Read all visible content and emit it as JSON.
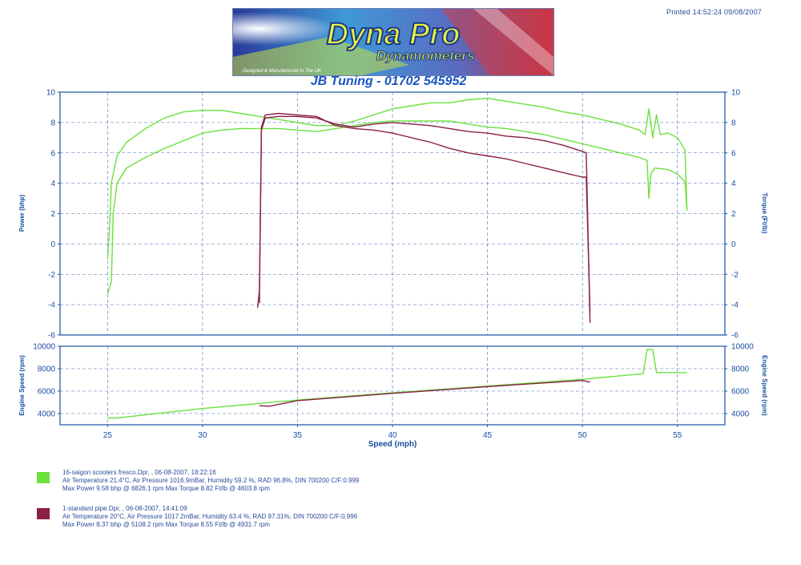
{
  "header": {
    "printed": "Printed 14:52:24  09/08/2007",
    "logo_title": "Dyna Pro",
    "logo_sub": "Dynamometers",
    "logo_tagline": "Designed & Manufactured In The UK",
    "subtitle": "JB Tuning - 01702 545952"
  },
  "colors": {
    "series_1": "#6be13c",
    "series_2": "#8a1f45",
    "axis": "#1a4fa0"
  },
  "chart_data": [
    {
      "type": "line",
      "title": "",
      "xlabel": "",
      "ylabel_left": "Power (bhp)",
      "ylabel_right": "Torque (Ft/lb)",
      "xlim": [
        22.5,
        57.5
      ],
      "ylim": [
        -6,
        10
      ],
      "y_ticks": [
        -6,
        -4,
        -2,
        0,
        2,
        4,
        6,
        8,
        10
      ],
      "grid": true,
      "series": [
        {
          "name": "Power",
          "group": 1,
          "points": [
            [
              25,
              -1
            ],
            [
              25.1,
              1
            ],
            [
              25.2,
              4
            ],
            [
              25.5,
              5.8
            ],
            [
              26,
              6.7
            ],
            [
              27,
              7.6
            ],
            [
              28,
              8.3
            ],
            [
              29,
              8.7
            ],
            [
              30,
              8.8
            ],
            [
              31,
              8.8
            ],
            [
              32,
              8.6
            ],
            [
              33,
              8.4
            ],
            [
              34,
              8.2
            ],
            [
              35,
              8.0
            ],
            [
              36,
              7.8
            ],
            [
              37,
              7.8
            ],
            [
              38,
              8.1
            ],
            [
              39,
              8.5
            ],
            [
              40,
              8.9
            ],
            [
              41,
              9.1
            ],
            [
              42,
              9.3
            ],
            [
              43,
              9.3
            ],
            [
              44,
              9.5
            ],
            [
              45,
              9.6
            ],
            [
              46,
              9.4
            ],
            [
              47,
              9.2
            ],
            [
              48,
              9.0
            ],
            [
              49,
              8.7
            ],
            [
              50,
              8.5
            ],
            [
              51,
              8.2
            ],
            [
              52,
              7.9
            ],
            [
              53,
              7.5
            ],
            [
              53.3,
              7.2
            ],
            [
              53.5,
              8.9
            ],
            [
              53.7,
              7.0
            ],
            [
              53.9,
              8.5
            ],
            [
              54.1,
              7.2
            ],
            [
              54.5,
              7.3
            ],
            [
              55,
              7.0
            ],
            [
              55.4,
              6.2
            ],
            [
              55.5,
              2.2
            ]
          ]
        },
        {
          "name": "Torque",
          "group": 1,
          "points": [
            [
              25,
              -3.3
            ],
            [
              25.2,
              -2.5
            ],
            [
              25.3,
              2
            ],
            [
              25.5,
              4
            ],
            [
              26,
              5
            ],
            [
              27,
              5.7
            ],
            [
              28,
              6.3
            ],
            [
              29,
              6.8
            ],
            [
              30,
              7.3
            ],
            [
              31,
              7.5
            ],
            [
              32,
              7.6
            ],
            [
              33,
              7.6
            ],
            [
              34,
              7.6
            ],
            [
              35,
              7.5
            ],
            [
              36,
              7.4
            ],
            [
              37,
              7.6
            ],
            [
              38,
              7.8
            ],
            [
              39,
              8.0
            ],
            [
              40,
              8.1
            ],
            [
              41,
              8.1
            ],
            [
              42,
              8.1
            ],
            [
              43,
              8.1
            ],
            [
              44,
              7.9
            ],
            [
              45,
              7.7
            ],
            [
              46,
              7.6
            ],
            [
              47,
              7.4
            ],
            [
              48,
              7.2
            ],
            [
              49,
              6.9
            ],
            [
              50,
              6.6
            ],
            [
              51,
              6.3
            ],
            [
              52,
              6.0
            ],
            [
              53,
              5.7
            ],
            [
              53.4,
              5.5
            ],
            [
              53.5,
              3.0
            ],
            [
              53.6,
              4.6
            ],
            [
              53.8,
              5.0
            ],
            [
              54.5,
              4.9
            ],
            [
              55,
              4.6
            ],
            [
              55.4,
              4.1
            ],
            [
              55.5,
              2.2
            ]
          ]
        },
        {
          "name": "Power",
          "group": 2,
          "points": [
            [
              33,
              -3.9
            ],
            [
              33.0,
              -2.5
            ],
            [
              33.1,
              7.5
            ],
            [
              33.3,
              8.3
            ],
            [
              34,
              8.4
            ],
            [
              35,
              8.4
            ],
            [
              36,
              8.3
            ],
            [
              37,
              7.9
            ],
            [
              38,
              7.7
            ],
            [
              39,
              7.9
            ],
            [
              40,
              8.0
            ],
            [
              41,
              7.9
            ],
            [
              42,
              7.8
            ],
            [
              43,
              7.6
            ],
            [
              44,
              7.4
            ],
            [
              45,
              7.3
            ],
            [
              46,
              7.1
            ],
            [
              47,
              7.0
            ],
            [
              48,
              6.8
            ],
            [
              49,
              6.5
            ],
            [
              50,
              6.1
            ],
            [
              50.2,
              6.0
            ],
            [
              50.4,
              -5.2
            ]
          ]
        },
        {
          "name": "Torque",
          "group": 2,
          "points": [
            [
              32.9,
              -4.2
            ],
            [
              33.0,
              -3.0
            ],
            [
              33.1,
              7.7
            ],
            [
              33.3,
              8.5
            ],
            [
              34,
              8.6
            ],
            [
              35,
              8.5
            ],
            [
              36,
              8.4
            ],
            [
              37,
              7.8
            ],
            [
              38,
              7.6
            ],
            [
              39,
              7.5
            ],
            [
              40,
              7.3
            ],
            [
              41,
              7.0
            ],
            [
              42,
              6.7
            ],
            [
              43,
              6.3
            ],
            [
              44,
              6.0
            ],
            [
              45,
              5.8
            ],
            [
              46,
              5.6
            ],
            [
              47,
              5.3
            ],
            [
              48,
              5.0
            ],
            [
              49,
              4.7
            ],
            [
              50,
              4.4
            ],
            [
              50.2,
              4.4
            ],
            [
              50.4,
              -4.5
            ]
          ]
        }
      ]
    },
    {
      "type": "line",
      "title": "",
      "xlabel": "Speed (mph)",
      "ylabel_left": "Engine Speed (rpm)",
      "ylabel_right": "Engine Speed (rpm)",
      "xlim": [
        22.5,
        57.5
      ],
      "ylim": [
        3000,
        10000
      ],
      "x_ticks": [
        25,
        30,
        35,
        40,
        45,
        50,
        55
      ],
      "y_ticks": [
        4000,
        6000,
        8000,
        10000
      ],
      "grid": true,
      "series": [
        {
          "name": "Engine Speed",
          "group": 1,
          "points": [
            [
              25,
              3600
            ],
            [
              25.5,
              3600
            ],
            [
              30,
              4450
            ],
            [
              35,
              5200
            ],
            [
              40,
              5850
            ],
            [
              45,
              6450
            ],
            [
              50,
              7050
            ],
            [
              53.2,
              7550
            ],
            [
              53.4,
              9700
            ],
            [
              53.7,
              9700
            ],
            [
              53.9,
              7650
            ],
            [
              55.5,
              7650
            ]
          ]
        },
        {
          "name": "Engine Speed",
          "group": 2,
          "points": [
            [
              33,
              4700
            ],
            [
              33.5,
              4650
            ],
            [
              35,
              5150
            ],
            [
              40,
              5800
            ],
            [
              45,
              6400
            ],
            [
              50,
              6950
            ],
            [
              50.4,
              6800
            ]
          ]
        }
      ]
    }
  ],
  "legend": [
    {
      "line1": "16-saigon scooters fresco.Dpr,  ,  06-08-2007,  18:22:16",
      "line2": "Air Temperature 21.4°C,  Air Pressure 1016.9mBar,  Humidity 59.2 %,  RAD 96.8%,  DIN 700200  C/F:0.999",
      "line3": "Max Power 9.58 bhp @ 6826.1 rpm   Max Torque 8.82 Ft/lb @ 4603.8 rpm"
    },
    {
      "line1": "1-standard pipe.Dpr,  ,  06-08-2007,  14:41:09",
      "line2": "Air Temperature 20°C,  Air Pressure 1017.2mBar,  Humidity 63.4 %,  RAD 97.31%,  DIN 700200  C/F:0.996",
      "line3": "Max Power 8.37 bhp @ 5108.2 rpm   Max Torque 8.55 Ft/lb @ 4931.7 rpm"
    }
  ]
}
